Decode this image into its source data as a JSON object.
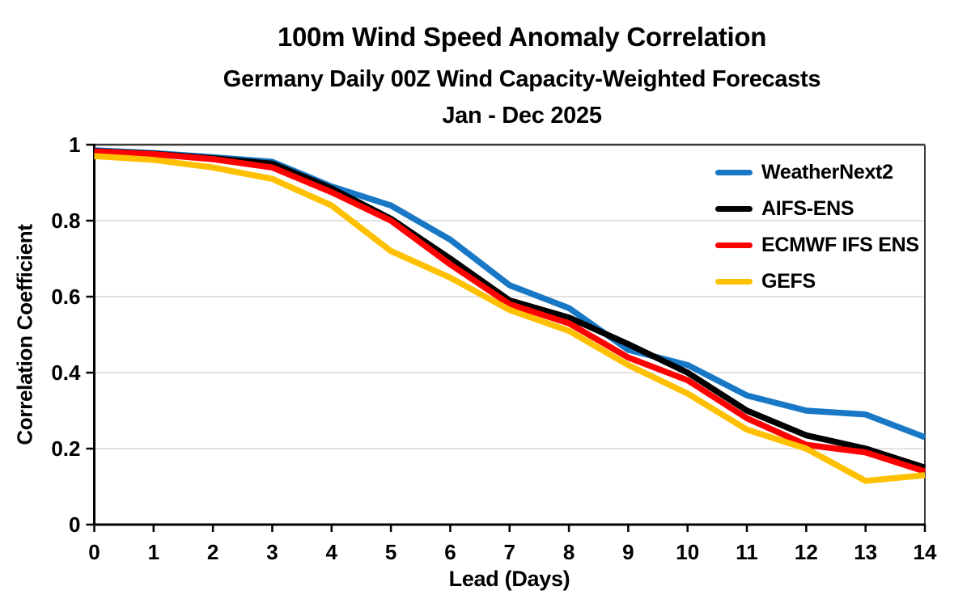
{
  "chart_data": {
    "type": "line",
    "title": "100m Wind Speed Anomaly Correlation",
    "subtitle": "Germany Daily 00Z Wind Capacity-Weighted Forecasts",
    "period": "Jan - Dec 2025",
    "xlabel": "Lead (Days)",
    "ylabel": "Correlation Coefficient",
    "xlim": [
      0,
      14
    ],
    "ylim": [
      0,
      1
    ],
    "grid": "horizontal-only",
    "grid_color": "#D9D9D9",
    "axis_color": "#000000",
    "border_color": "#3b3b3b",
    "legend_position": "inside-top-right",
    "x": [
      0,
      1,
      2,
      3,
      4,
      5,
      6,
      7,
      8,
      9,
      10,
      11,
      12,
      13,
      14
    ],
    "x_ticks": {
      "values": [
        0,
        1,
        2,
        3,
        4,
        5,
        6,
        7,
        8,
        9,
        10,
        11,
        12,
        13,
        14
      ],
      "labels": [
        "0",
        "1",
        "2",
        "3",
        "4",
        "5",
        "6",
        "7",
        "8",
        "9",
        "10",
        "11",
        "12",
        "13",
        "14"
      ]
    },
    "y_ticks": {
      "values": [
        0,
        0.2,
        0.4,
        0.6,
        0.8,
        1
      ],
      "labels": [
        "0",
        "0.2",
        "0.4",
        "0.6",
        "0.8",
        "1"
      ]
    },
    "series": [
      {
        "name": "WeatherNext2",
        "color": "#1878C6",
        "values": [
          0.985,
          0.978,
          0.967,
          0.955,
          0.89,
          0.84,
          0.75,
          0.63,
          0.57,
          0.46,
          0.42,
          0.34,
          0.3,
          0.29,
          0.23
        ]
      },
      {
        "name": "AIFS-ENS",
        "color": "#000000",
        "values": [
          0.983,
          0.976,
          0.964,
          0.95,
          0.885,
          0.805,
          0.7,
          0.59,
          0.545,
          0.475,
          0.4,
          0.3,
          0.235,
          0.2,
          0.15
        ]
      },
      {
        "name": "ECMWF IFS ENS",
        "color": "#FF0000",
        "values": [
          0.982,
          0.975,
          0.962,
          0.94,
          0.875,
          0.8,
          0.685,
          0.58,
          0.53,
          0.44,
          0.38,
          0.28,
          0.21,
          0.19,
          0.14
        ]
      },
      {
        "name": "GEFS",
        "color": "#FFC000",
        "values": [
          0.97,
          0.96,
          0.94,
          0.91,
          0.84,
          0.72,
          0.65,
          0.565,
          0.51,
          0.42,
          0.345,
          0.25,
          0.2,
          0.115,
          0.13
        ]
      }
    ]
  }
}
